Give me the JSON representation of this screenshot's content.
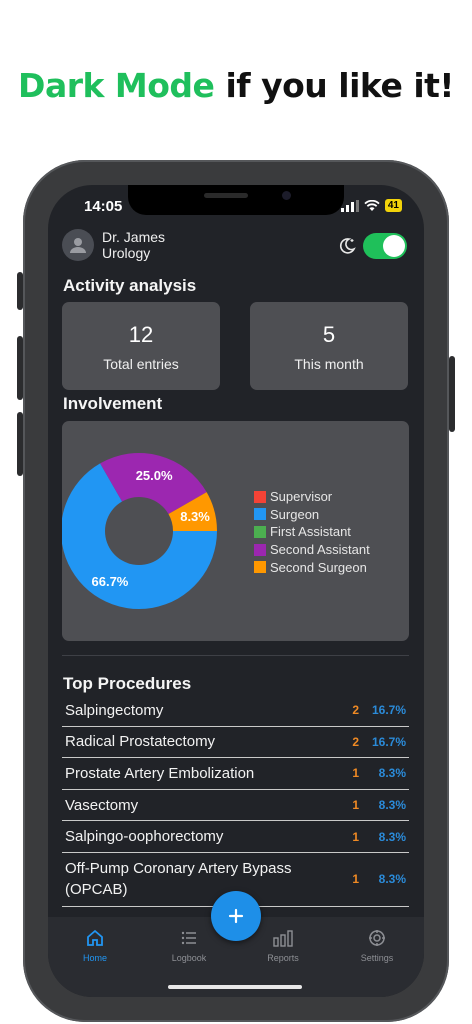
{
  "headline": {
    "accent": "Dark Mode",
    "rest": "if you like it!"
  },
  "status": {
    "time": "14:05",
    "battery": "41"
  },
  "header": {
    "name": "Dr. James",
    "specialty": "Urology"
  },
  "activity": {
    "title": "Activity analysis",
    "cards": [
      {
        "value": "12",
        "label": "Total entries"
      },
      {
        "value": "5",
        "label": "This month"
      }
    ]
  },
  "involvement": {
    "title": "Involvement",
    "legend": [
      {
        "label": "Supervisor",
        "color": "#f44336"
      },
      {
        "label": "Surgeon",
        "color": "#2196f3"
      },
      {
        "label": "First Assistant",
        "color": "#4caf50"
      },
      {
        "label": "Second Assistant",
        "color": "#9c27b0"
      },
      {
        "label": "Second Surgeon",
        "color": "#ff9800"
      }
    ]
  },
  "chart_data": {
    "type": "pie",
    "categories": [
      "Supervisor",
      "Surgeon",
      "First Assistant",
      "Second Assistant",
      "Second Surgeon"
    ],
    "values": [
      0,
      66.7,
      0,
      25.0,
      8.3
    ],
    "labels": [
      "",
      "66.7%",
      "",
      "25.0%",
      "8.3%"
    ],
    "colors": [
      "#f44336",
      "#2196f3",
      "#4caf50",
      "#9c27b0",
      "#ff9800"
    ],
    "legend_position": "right",
    "donut": true
  },
  "procedures": {
    "title": "Top Procedures",
    "rows": [
      {
        "name": "Salpingectomy",
        "count": "2",
        "pct": "16.7%"
      },
      {
        "name": "Radical Prostatectomy",
        "count": "2",
        "pct": "16.7%"
      },
      {
        "name": "Prostate Artery Embolization",
        "count": "1",
        "pct": "8.3%"
      },
      {
        "name": "Vasectomy",
        "count": "1",
        "pct": "8.3%"
      },
      {
        "name": "Salpingo-oophorectomy",
        "count": "1",
        "pct": "8.3%"
      },
      {
        "name": "Off-Pump Coronary Artery Bypass (OPCAB)",
        "count": "1",
        "pct": "8.3%"
      }
    ]
  },
  "tabs": [
    {
      "label": "Home",
      "icon": "home-icon",
      "active": true
    },
    {
      "label": "Logbook",
      "icon": "list-icon",
      "active": false
    },
    {
      "label": "Reports",
      "icon": "bar-chart-icon",
      "active": false
    },
    {
      "label": "Settings",
      "icon": "gear-icon",
      "active": false
    }
  ],
  "fab": {
    "label": "+"
  },
  "colors": {
    "accent_green": "#1fbf5c",
    "screen_bg": "#212328",
    "card_bg": "#4e4f53",
    "primary_blue": "#2196f3",
    "count_orange": "#f08a24"
  }
}
